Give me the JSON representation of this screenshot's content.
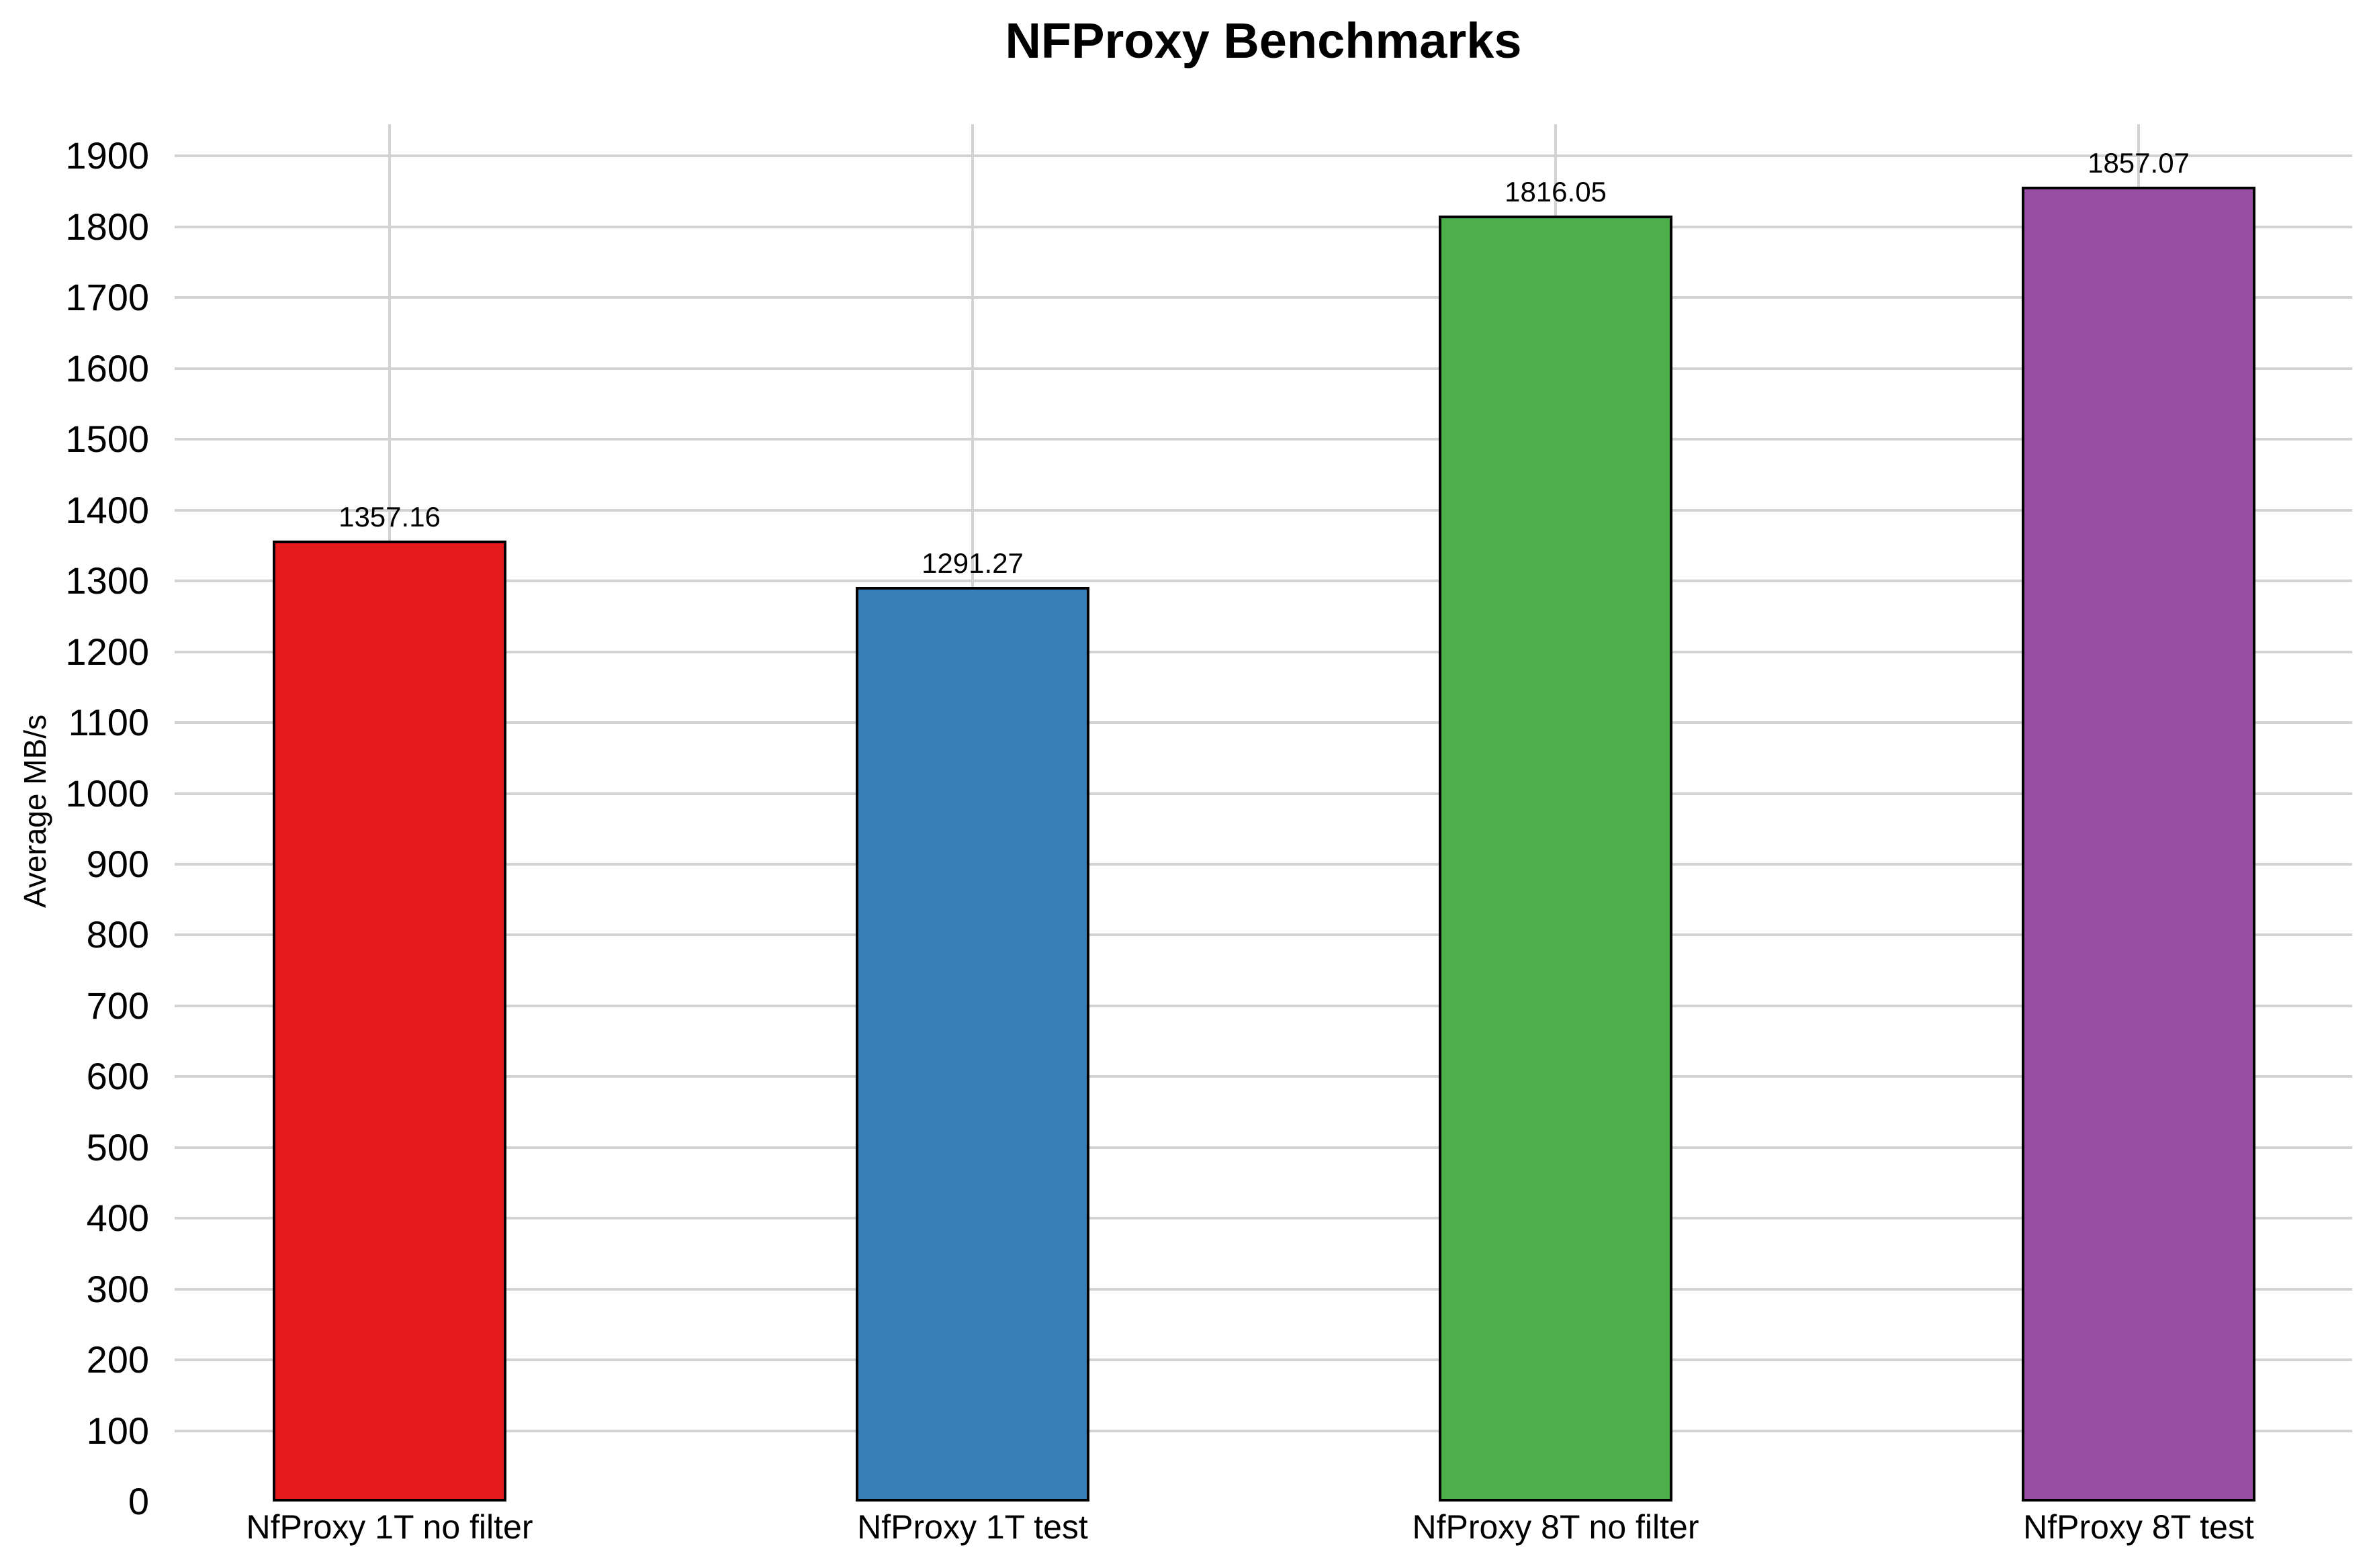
{
  "chart_data": {
    "type": "bar",
    "title": "NFProxy Benchmarks",
    "ylabel": "Average MB/s",
    "xlabel": "",
    "categories": [
      "NfProxy 1T no filter",
      "NfProxy 1T test",
      "NfProxy 8T no filter",
      "NfProxy 8T test"
    ],
    "values": [
      1357.16,
      1291.27,
      1816.05,
      1857.07
    ],
    "bar_labels": [
      "1357.16",
      "1291.27",
      "1816.05",
      "1857.07"
    ],
    "bar_colors": [
      "#e41a1c",
      "#377eb8",
      "#4daf4a",
      "#984ea3"
    ],
    "bar_edge_color": "#000000",
    "ylim": [
      0,
      1945
    ],
    "yticks": [
      0,
      100,
      200,
      300,
      400,
      500,
      600,
      700,
      800,
      900,
      1000,
      1100,
      1200,
      1300,
      1400,
      1500,
      1600,
      1700,
      1800,
      1900
    ],
    "grid": true,
    "grid_color": "#d3d3d3",
    "legend": "none",
    "text_color": "#000000",
    "background_color": "#ffffff"
  }
}
